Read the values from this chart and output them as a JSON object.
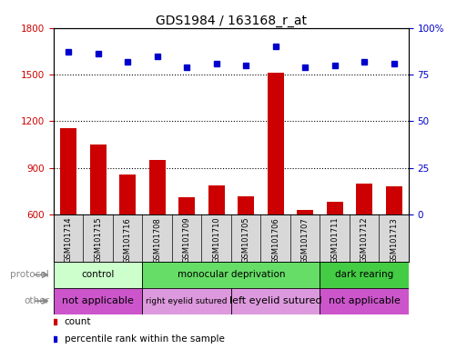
{
  "title": "GDS1984 / 163168_r_at",
  "samples": [
    "GSM101714",
    "GSM101715",
    "GSM101716",
    "GSM101708",
    "GSM101709",
    "GSM101710",
    "GSM101705",
    "GSM101706",
    "GSM101707",
    "GSM101711",
    "GSM101712",
    "GSM101713"
  ],
  "count_values": [
    1155,
    1050,
    860,
    950,
    710,
    790,
    715,
    1510,
    630,
    680,
    800,
    780
  ],
  "percentile_values": [
    87,
    86,
    82,
    85,
    79,
    81,
    80,
    90,
    79,
    80,
    82,
    81
  ],
  "ylim_left": [
    600,
    1800
  ],
  "ylim_right": [
    0,
    100
  ],
  "yticks_left": [
    600,
    900,
    1200,
    1500,
    1800
  ],
  "yticks_right": [
    0,
    25,
    50,
    75,
    100
  ],
  "bar_color": "#cc0000",
  "dot_color": "#0000cc",
  "protocol_groups": [
    {
      "label": "control",
      "start": 0,
      "end": 3,
      "color": "#ccffcc"
    },
    {
      "label": "monocular deprivation",
      "start": 3,
      "end": 9,
      "color": "#66dd66"
    },
    {
      "label": "dark rearing",
      "start": 9,
      "end": 12,
      "color": "#44cc44"
    }
  ],
  "other_groups": [
    {
      "label": "not applicable",
      "start": 0,
      "end": 3,
      "color": "#cc55cc",
      "fontsize": 8
    },
    {
      "label": "right eyelid sutured",
      "start": 3,
      "end": 6,
      "color": "#dd99dd",
      "fontsize": 6.5
    },
    {
      "label": "left eyelid sutured",
      "start": 6,
      "end": 9,
      "color": "#dd99dd",
      "fontsize": 8
    },
    {
      "label": "not applicable",
      "start": 9,
      "end": 12,
      "color": "#cc55cc",
      "fontsize": 8
    }
  ],
  "protocol_label": "protocol",
  "other_label": "other",
  "legend_count_label": "count",
  "legend_pct_label": "percentile rank within the sample",
  "title_fontsize": 10,
  "axis_color_left": "#cc0000",
  "axis_color_right": "#0000cc",
  "xband_bg": "#d8d8d8"
}
